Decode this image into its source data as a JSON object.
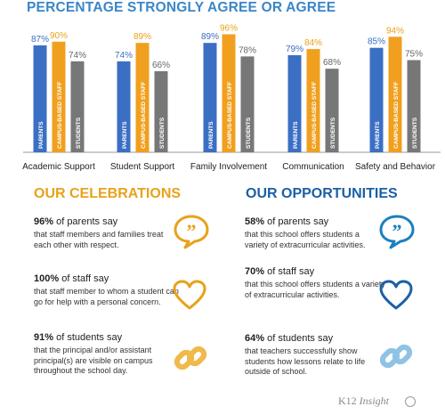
{
  "chart_data": {
    "type": "bar",
    "title": "PERCENTAGE STRONGLY AGREE OR AGREE",
    "categories": [
      "Academic Support",
      "Student Support",
      "Family Involvement",
      "Communication",
      "Safety and Behavior"
    ],
    "series": [
      {
        "name": "PARENTS",
        "color": "#3b6fc4",
        "values": [
          87,
          74,
          89,
          79,
          85
        ]
      },
      {
        "name": "CAMPUS-BASED STAFF",
        "color": "#f0a01e",
        "values": [
          90,
          89,
          96,
          84,
          94
        ]
      },
      {
        "name": "STUDENTS",
        "color": "#777777",
        "values": [
          74,
          66,
          78,
          68,
          75
        ]
      }
    ],
    "value_suffix": "%",
    "ylim": [
      0,
      100
    ],
    "grid": false,
    "legend": "none"
  },
  "celebrations": {
    "title": "OUR CELEBRATIONS",
    "color": "#e8a21a",
    "items": [
      {
        "pct": "96%",
        "head": " of parents say",
        "body": "that staff members and families treat each other with respect.",
        "icon": "speech-bubble-icon"
      },
      {
        "pct": "100%",
        "head": " of staff say",
        "body": "that staff member to whom a student can go for help with a personal concern.",
        "icon": "heart-icon"
      },
      {
        "pct": "91%",
        "head": " of students say",
        "body": "that the principal and/or assistant principal(s) are visible on campus throughout the school day.",
        "icon": "link-icon"
      }
    ]
  },
  "opportunities": {
    "title": "OUR OPPORTUNITIES",
    "color": "#1c5fa5",
    "items": [
      {
        "pct": "58%",
        "head": " of parents say",
        "body": "that this school offers students a variety of extracurricular activities.",
        "icon": "speech-bubble-icon",
        "icon_color": "#1a80c0"
      },
      {
        "pct": "70%",
        "head": " of staff say",
        "body": "that this school offers students a variety of extracurricular activities.",
        "icon": "heart-icon",
        "icon_color": "#1c5fa5"
      },
      {
        "pct": "64%",
        "head": " of students say",
        "body": "that teachers successfully show students how lessons relate to life outside of school.",
        "icon": "link-icon",
        "icon_color": "#8fc3e3"
      }
    ]
  },
  "footer": {
    "brand": "K12",
    "brand_italic": "Insight"
  }
}
